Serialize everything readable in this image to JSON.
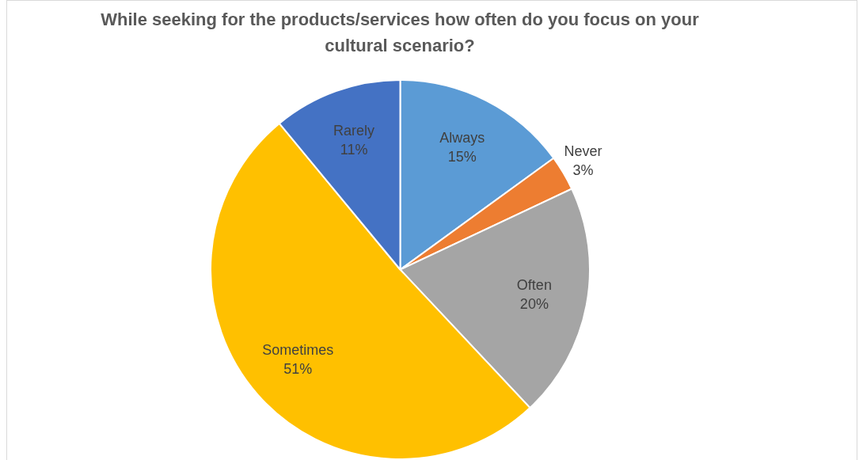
{
  "chart_data": {
    "type": "pie",
    "title": "While seeking for the products/services how often do you focus on your cultural scenario?",
    "categories": [
      "Always",
      "Never",
      "Often",
      "Sometimes",
      "Rarely"
    ],
    "values": [
      15,
      3,
      20,
      51,
      11
    ],
    "value_labels": [
      "15%",
      "3%",
      "20%",
      "51%",
      "11%"
    ],
    "colors": [
      "#5b9bd5",
      "#ed7d31",
      "#a5a5a5",
      "#ffc000",
      "#4472c4"
    ],
    "legend": false
  }
}
